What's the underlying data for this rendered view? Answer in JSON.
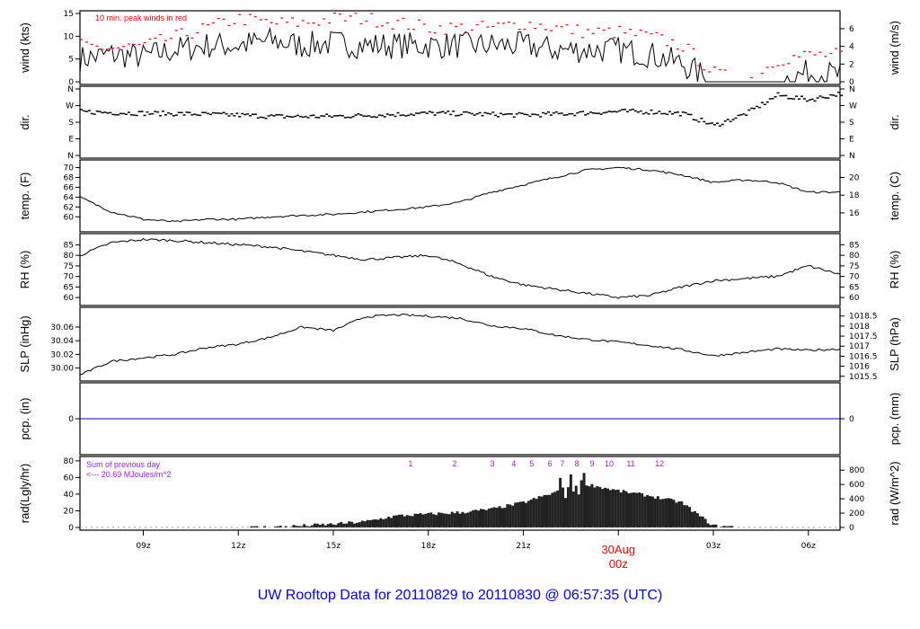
{
  "chart_data": {
    "type": "line",
    "title": "UW Rooftop Data for 20110829  to  20110830 @ 06:57:35  (UTC)",
    "x_hours_utc_start": 7,
    "x_ticks": [
      {
        "h": 9,
        "label": "09z"
      },
      {
        "h": 12,
        "label": "12z"
      },
      {
        "h": 15,
        "label": "15z"
      },
      {
        "h": 18,
        "label": "18z"
      },
      {
        "h": 21,
        "label": "21z"
      },
      {
        "h": 24,
        "label": "00z",
        "date": "30Aug"
      },
      {
        "h": 27,
        "label": "03z"
      },
      {
        "h": 30,
        "label": "06z"
      }
    ],
    "colors": {
      "series": "#000000",
      "gust": "#ff0000",
      "pcp": "#0000ff",
      "title": "#0000ff",
      "annot": "#a020f0",
      "date": "#ff0000"
    },
    "panels": [
      {
        "id": "wind",
        "ylabel": "wind (kts)",
        "ylabel_right": "wind (m/s)",
        "ylim": [
          0,
          15
        ],
        "ticks": [
          "0",
          "5",
          "10",
          "15"
        ],
        "right_ticks": [
          "0",
          "2",
          "4",
          "6"
        ],
        "right_ylim": [
          0,
          7.72
        ],
        "annotation": "10 min. peak winds in red",
        "values": [
          5,
          6,
          5.5,
          7,
          8,
          8,
          9,
          8,
          8.5,
          8,
          8,
          8,
          8,
          8,
          8,
          7,
          7,
          7,
          6,
          4,
          0,
          0,
          0,
          2,
          1.5
        ],
        "gust": [
          8,
          7.5,
          8,
          10,
          12,
          14,
          13,
          13,
          14,
          14,
          13,
          12,
          12,
          12,
          13,
          12,
          11,
          11,
          10,
          8,
          2,
          0,
          5,
          6,
          6
        ]
      },
      {
        "id": "dir",
        "ylabel": "dir.",
        "ylabel_right": "dir.",
        "ylim": [
          0,
          360
        ],
        "ticks": [
          "N",
          "E",
          "S",
          "W",
          "N"
        ],
        "right_ticks": [
          "N",
          "E",
          "S",
          "W",
          "N"
        ],
        "values": [
          240,
          235,
          232,
          230,
          226,
          222,
          215,
          214,
          216,
          220,
          226,
          232,
          230,
          226,
          222,
          228,
          234,
          242,
          240,
          230,
          165,
          230,
          330,
          305,
          340
        ]
      },
      {
        "id": "temp",
        "ylabel": "temp. (F)",
        "ylabel_right": "temp. (C)",
        "ylim": [
          57.5,
          71
        ],
        "ticks": [
          "60",
          "62",
          "64",
          "66",
          "68",
          "70"
        ],
        "right_ticks": [
          "16",
          "18",
          "20"
        ],
        "right_ylim": [
          14.17,
          21.67
        ],
        "values": [
          64,
          61,
          59.5,
          59,
          59.5,
          59.5,
          60,
          60.3,
          60.5,
          61,
          61.5,
          62,
          63,
          65,
          66.5,
          68,
          69.5,
          70,
          69.5,
          68.5,
          67,
          67.5,
          67,
          65,
          65
        ]
      },
      {
        "id": "rh",
        "ylabel": "RH (%)",
        "ylabel_right": "RH (%)",
        "ylim": [
          57.5,
          89
        ],
        "ticks": [
          "60",
          "65",
          "70",
          "75",
          "80",
          "85"
        ],
        "right_ticks": [
          "60",
          "65",
          "70",
          "75",
          "80",
          "85"
        ],
        "values": [
          80,
          86,
          87.5,
          87,
          86,
          85,
          84,
          82,
          80,
          78,
          79,
          80,
          76,
          70,
          66,
          64,
          62,
          60,
          61,
          65,
          68,
          69,
          70,
          75,
          71
        ]
      },
      {
        "id": "slp",
        "ylabel": "SLP (inHg)",
        "ylabel_right": "SLP (hPa)",
        "ylim": [
          29.985,
          30.085
        ],
        "ticks": [
          "30.00",
          "30.02",
          "30.04",
          "30.06"
        ],
        "right_ticks": [
          "1015.5",
          "1016",
          "1016.5",
          "1017",
          "1017.5",
          "1018",
          "1018.5"
        ],
        "right_ylim": [
          1015.4,
          1018.8
        ],
        "values": [
          29.99,
          30.01,
          30.015,
          30.02,
          30.03,
          30.035,
          30.045,
          30.06,
          30.055,
          30.075,
          30.078,
          30.076,
          30.073,
          30.062,
          30.058,
          30.048,
          30.042,
          30.038,
          30.033,
          30.027,
          30.018,
          30.023,
          30.028,
          30.026,
          30.028
        ]
      },
      {
        "id": "pcp",
        "ylabel": "pcp. (in)",
        "ylabel_right": "pcp. (mm)",
        "ylim": [
          -1,
          1
        ],
        "ticks": [
          "0"
        ],
        "right_ticks": [
          "0"
        ],
        "values": [
          0,
          0,
          0,
          0,
          0,
          0,
          0,
          0,
          0,
          0,
          0,
          0,
          0,
          0,
          0,
          0,
          0,
          0,
          0,
          0,
          0,
          0,
          0,
          0,
          0
        ]
      },
      {
        "id": "rad",
        "ylabel": "rad(Lgly/hr)",
        "ylabel_right": "rad (W/m^2)",
        "ylim": [
          0,
          82
        ],
        "ticks": [
          "0",
          "20",
          "40",
          "60",
          "80"
        ],
        "right_ticks": [
          "0",
          "200",
          "400",
          "600",
          "800"
        ],
        "right_ylim": [
          0,
          953
        ],
        "annotation_1": "Sum of previous day",
        "annotation_2": "<--- 20.69 MJoules/m^2",
        "values": [
          0,
          0,
          0,
          0,
          0,
          0,
          0.5,
          2,
          4,
          7,
          14,
          16,
          18,
          22,
          30,
          42,
          52,
          44,
          38,
          30,
          2,
          0,
          0,
          0,
          0
        ],
        "hour_marks": [
          {
            "h": 17.44,
            "label": "1"
          },
          {
            "h": 18.83,
            "label": "2"
          },
          {
            "h": 20.02,
            "label": "3"
          },
          {
            "h": 20.7,
            "label": "4"
          },
          {
            "h": 21.27,
            "label": "5"
          },
          {
            "h": 21.84,
            "label": "6"
          },
          {
            "h": 22.23,
            "label": "7"
          },
          {
            "h": 22.69,
            "label": "8"
          },
          {
            "h": 23.17,
            "label": "9"
          },
          {
            "h": 23.71,
            "label": "10"
          },
          {
            "h": 24.39,
            "label": "11"
          },
          {
            "h": 25.3,
            "label": "12"
          }
        ]
      }
    ]
  }
}
